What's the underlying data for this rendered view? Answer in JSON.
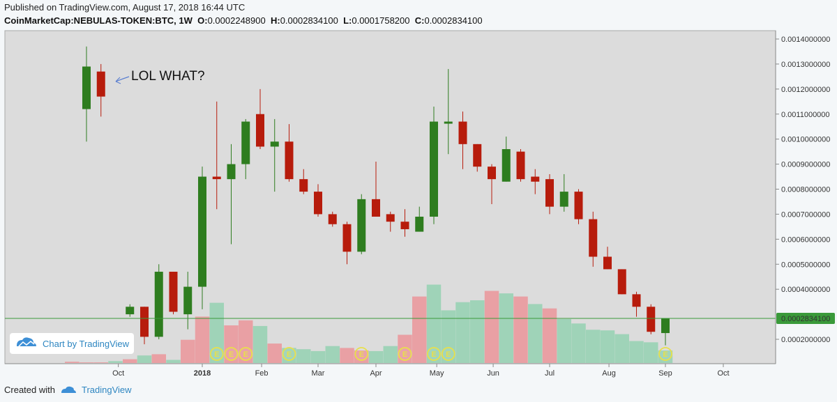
{
  "header": {
    "published": "Published on TradingView.com, August 17, 2018 16:44 UTC",
    "symbol": "CoinMarketCap:NEBULAS-TOKEN:BTC, 1W",
    "o_label": "O:",
    "o_value": "0.0002248900",
    "h_label": "H:",
    "h_value": "0.0002834100",
    "l_label": "L:",
    "l_value": "0.0001758200",
    "c_label": "C:",
    "c_value": "0.0002834100"
  },
  "footer": {
    "created_with": "Created with",
    "brand": "TradingView"
  },
  "watermark": "Chart by TradingView",
  "annotation": "LOL WHAT?",
  "colors": {
    "up": "#2e7d1f",
    "down": "#b71c0c",
    "vol_up": "#9fd3b8",
    "vol_down": "#e9a0a4",
    "bg": "#dcdcdc",
    "price_line": "#3a9a3a",
    "event": "#e8e04a"
  },
  "chart_data": {
    "type": "candlestick",
    "interval": "1W",
    "price_axis": {
      "ticks": [
        "0.0014000000",
        "0.0013000000",
        "0.0012000000",
        "0.0011000000",
        "0.0010000000",
        "0.0009000000",
        "0.0008000000",
        "0.0007000000",
        "0.0006000000",
        "0.0005000000",
        "0.0004000000",
        "0.0002000000"
      ],
      "tick_values": [
        0.0014,
        0.0013,
        0.0012,
        0.0011,
        0.001,
        0.0009,
        0.0008,
        0.0007,
        0.0006,
        0.0005,
        0.0004,
        0.0002
      ],
      "current_label": "0.0002834100",
      "current_value": 0.00028341
    },
    "time_axis": {
      "labels": [
        "Oct",
        "2018",
        "Feb",
        "Mar",
        "Apr",
        "May",
        "Jun",
        "Jul",
        "Aug",
        "Sep",
        "Oct"
      ],
      "label_weeks": [
        2.2,
        8.0,
        12.1,
        16.0,
        20.0,
        24.2,
        28.1,
        32.0,
        36.1,
        40.0,
        44.0
      ],
      "bold": [
        false,
        true,
        false,
        false,
        false,
        false,
        false,
        false,
        false,
        false,
        false
      ]
    },
    "candles": [
      {
        "w": 0,
        "o": 0.00112,
        "h": 0.00137,
        "l": 0.00099,
        "c": 0.00129
      },
      {
        "w": 1,
        "o": 0.00127,
        "h": 0.0013,
        "l": 0.00109,
        "c": 0.00117
      },
      {
        "w": 3,
        "o": 0.0003,
        "h": 0.00034,
        "l": 0.00029,
        "c": 0.00033
      },
      {
        "w": 4,
        "o": 0.00033,
        "h": 0.00033,
        "l": 0.00018,
        "c": 0.00021
      },
      {
        "w": 5,
        "o": 0.00021,
        "h": 0.0005,
        "l": 0.0002,
        "c": 0.00047
      },
      {
        "w": 6,
        "o": 0.00047,
        "h": 0.00047,
        "l": 0.0003,
        "c": 0.00031
      },
      {
        "w": 7,
        "o": 0.0003,
        "h": 0.00047,
        "l": 0.00024,
        "c": 0.00041
      },
      {
        "w": 8,
        "o": 0.00041,
        "h": 0.00089,
        "l": 0.00032,
        "c": 0.00085
      },
      {
        "w": 9,
        "o": 0.00085,
        "h": 0.00115,
        "l": 0.00072,
        "c": 0.00084
      },
      {
        "w": 10,
        "o": 0.00084,
        "h": 0.00098,
        "l": 0.00058,
        "c": 0.0009
      },
      {
        "w": 11,
        "o": 0.0009,
        "h": 0.00108,
        "l": 0.00084,
        "c": 0.00107
      },
      {
        "w": 12,
        "o": 0.0011,
        "h": 0.0012,
        "l": 0.00096,
        "c": 0.00097
      },
      {
        "w": 13,
        "o": 0.00097,
        "h": 0.00108,
        "l": 0.00079,
        "c": 0.00099
      },
      {
        "w": 14,
        "o": 0.00099,
        "h": 0.00106,
        "l": 0.00083,
        "c": 0.00084
      },
      {
        "w": 15,
        "o": 0.00084,
        "h": 0.00088,
        "l": 0.00078,
        "c": 0.00079
      },
      {
        "w": 16,
        "o": 0.00079,
        "h": 0.00082,
        "l": 0.00069,
        "c": 0.0007
      },
      {
        "w": 17,
        "o": 0.0007,
        "h": 0.00071,
        "l": 0.00065,
        "c": 0.00066
      },
      {
        "w": 18,
        "o": 0.00066,
        "h": 0.00067,
        "l": 0.0005,
        "c": 0.00055
      },
      {
        "w": 19,
        "o": 0.00055,
        "h": 0.00078,
        "l": 0.00054,
        "c": 0.00076
      },
      {
        "w": 20,
        "o": 0.00076,
        "h": 0.00091,
        "l": 0.00069,
        "c": 0.00069
      },
      {
        "w": 21,
        "o": 0.0007,
        "h": 0.00071,
        "l": 0.00063,
        "c": 0.00067
      },
      {
        "w": 22,
        "o": 0.00067,
        "h": 0.00072,
        "l": 0.00061,
        "c": 0.00064
      },
      {
        "w": 23,
        "o": 0.00063,
        "h": 0.00073,
        "l": 0.00063,
        "c": 0.00069
      },
      {
        "w": 24,
        "o": 0.00069,
        "h": 0.00113,
        "l": 0.00066,
        "c": 0.00107
      },
      {
        "w": 25,
        "o": 0.00107,
        "h": 0.00128,
        "l": 0.00094,
        "c": 0.00107
      },
      {
        "w": 26,
        "o": 0.00107,
        "h": 0.00111,
        "l": 0.00088,
        "c": 0.00098
      },
      {
        "w": 27,
        "o": 0.00098,
        "h": 0.00098,
        "l": 0.00087,
        "c": 0.00089
      },
      {
        "w": 28,
        "o": 0.00089,
        "h": 0.0009,
        "l": 0.00074,
        "c": 0.00084
      },
      {
        "w": 29,
        "o": 0.00083,
        "h": 0.00101,
        "l": 0.00083,
        "c": 0.00096
      },
      {
        "w": 30,
        "o": 0.00095,
        "h": 0.00096,
        "l": 0.00083,
        "c": 0.00084
      },
      {
        "w": 31,
        "o": 0.00085,
        "h": 0.00088,
        "l": 0.00078,
        "c": 0.00083
      },
      {
        "w": 32,
        "o": 0.00084,
        "h": 0.00086,
        "l": 0.0007,
        "c": 0.00073
      },
      {
        "w": 33,
        "o": 0.00073,
        "h": 0.00086,
        "l": 0.00071,
        "c": 0.00079
      },
      {
        "w": 34,
        "o": 0.00079,
        "h": 0.0008,
        "l": 0.00066,
        "c": 0.00068
      },
      {
        "w": 35,
        "o": 0.00068,
        "h": 0.00071,
        "l": 0.00049,
        "c": 0.00053
      },
      {
        "w": 36,
        "o": 0.00053,
        "h": 0.00057,
        "l": 0.00048,
        "c": 0.00048
      },
      {
        "w": 37,
        "o": 0.00048,
        "h": 0.00048,
        "l": 0.00038,
        "c": 0.00038
      },
      {
        "w": 38,
        "o": 0.00038,
        "h": 0.00039,
        "l": 0.00029,
        "c": 0.00033
      },
      {
        "w": 39,
        "o": 0.00033,
        "h": 0.00034,
        "l": 0.00022,
        "c": 0.00023
      },
      {
        "w": 40,
        "o": 0.00022489,
        "h": 0.00028341,
        "l": 0.00017582,
        "c": 0.00028341
      }
    ],
    "volume_relative": [
      {
        "w": -1,
        "v": 0.02,
        "up": false
      },
      {
        "w": 0,
        "v": 0.01,
        "up": false
      },
      {
        "w": 1,
        "v": 0.01,
        "up": false
      },
      {
        "w": 2,
        "v": 0.03,
        "up": true
      },
      {
        "w": 3,
        "v": 0.06,
        "up": false
      },
      {
        "w": 4,
        "v": 0.12,
        "up": true
      },
      {
        "w": 5,
        "v": 0.14,
        "up": false
      },
      {
        "w": 6,
        "v": 0.05,
        "up": true
      },
      {
        "w": 7,
        "v": 0.37,
        "up": false
      },
      {
        "w": 8,
        "v": 0.74,
        "up": false
      },
      {
        "w": 9,
        "v": 0.96,
        "up": true
      },
      {
        "w": 10,
        "v": 0.6,
        "up": false
      },
      {
        "w": 11,
        "v": 0.68,
        "up": false
      },
      {
        "w": 12,
        "v": 0.59,
        "up": true
      },
      {
        "w": 13,
        "v": 0.31,
        "up": false
      },
      {
        "w": 14,
        "v": 0.24,
        "up": true
      },
      {
        "w": 15,
        "v": 0.22,
        "up": true
      },
      {
        "w": 16,
        "v": 0.19,
        "up": true
      },
      {
        "w": 17,
        "v": 0.27,
        "up": true
      },
      {
        "w": 18,
        "v": 0.24,
        "up": false
      },
      {
        "w": 19,
        "v": 0.2,
        "up": false
      },
      {
        "w": 20,
        "v": 0.19,
        "up": true
      },
      {
        "w": 21,
        "v": 0.27,
        "up": true
      },
      {
        "w": 22,
        "v": 0.45,
        "up": false
      },
      {
        "w": 23,
        "v": 1.06,
        "up": false
      },
      {
        "w": 24,
        "v": 1.25,
        "up": true
      },
      {
        "w": 25,
        "v": 0.84,
        "up": true
      },
      {
        "w": 26,
        "v": 0.97,
        "up": true
      },
      {
        "w": 27,
        "v": 1.0,
        "up": true
      },
      {
        "w": 28,
        "v": 1.15,
        "up": false
      },
      {
        "w": 29,
        "v": 1.11,
        "up": true
      },
      {
        "w": 30,
        "v": 1.06,
        "up": false
      },
      {
        "w": 31,
        "v": 0.94,
        "up": true
      },
      {
        "w": 32,
        "v": 0.87,
        "up": false
      },
      {
        "w": 33,
        "v": 0.7,
        "up": true
      },
      {
        "w": 34,
        "v": 0.63,
        "up": true
      },
      {
        "w": 35,
        "v": 0.53,
        "up": true
      },
      {
        "w": 36,
        "v": 0.52,
        "up": true
      },
      {
        "w": 37,
        "v": 0.46,
        "up": true
      },
      {
        "w": 38,
        "v": 0.35,
        "up": true
      },
      {
        "w": 39,
        "v": 0.33,
        "up": true
      },
      {
        "w": 40,
        "v": 0.2,
        "up": true
      }
    ],
    "events": [
      {
        "w": 9,
        "label": "E"
      },
      {
        "w": 10,
        "label": "E"
      },
      {
        "w": 11,
        "label": "E"
      },
      {
        "w": 14,
        "label": "E"
      },
      {
        "w": 19,
        "label": "E"
      },
      {
        "w": 22,
        "label": "E"
      },
      {
        "w": 24,
        "label": "E"
      },
      {
        "w": 25,
        "label": "E"
      },
      {
        "w": 40,
        "label": "E"
      }
    ]
  }
}
